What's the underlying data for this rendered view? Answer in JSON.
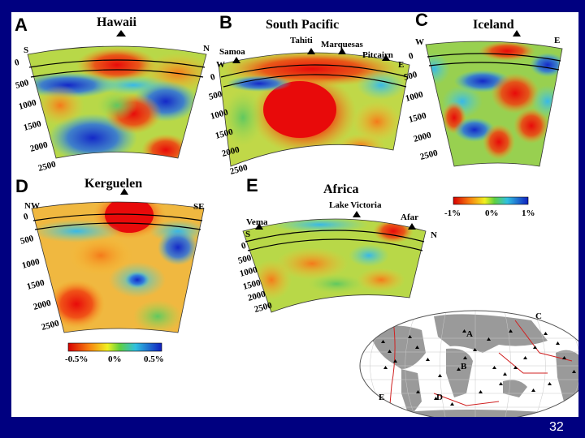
{
  "slide": {
    "page_number": "32"
  },
  "colors": {
    "background": "#000080",
    "hot": "#e01010",
    "neutral": "#e8e040",
    "cold": "#2040c8"
  },
  "panels": {
    "a": {
      "letter": "A",
      "title": "Hawaii",
      "left": "S",
      "right": "N",
      "depths": [
        "0",
        "500",
        "1000",
        "1500",
        "2000",
        "2500"
      ]
    },
    "b": {
      "letter": "B",
      "title": "South Pacific",
      "left": "W",
      "right": "E",
      "sites": [
        "Samoa",
        "Tahiti",
        "Marquesas",
        "Pitcairn"
      ],
      "depths": [
        "0",
        "500",
        "1000",
        "1500",
        "2000",
        "2500"
      ]
    },
    "c": {
      "letter": "C",
      "title": "Iceland",
      "left": "W",
      "right": "E",
      "depths": [
        "0",
        "500",
        "1000",
        "1500",
        "2000",
        "2500"
      ]
    },
    "d": {
      "letter": "D",
      "title": "Kerguelen",
      "left": "NW",
      "right": "SE",
      "depths": [
        "0",
        "500",
        "1000",
        "1500",
        "2000",
        "2500"
      ]
    },
    "e": {
      "letter": "E",
      "title": "Africa",
      "left": "S",
      "right": "N",
      "sites": [
        "Vema",
        "Lake Victoria",
        "Afar"
      ],
      "depths": [
        "0",
        "500",
        "1000",
        "1500",
        "2000",
        "2500"
      ]
    }
  },
  "colorbar_top": {
    "labels": [
      "-1%",
      "0%",
      "1%"
    ]
  },
  "colorbar_bottom": {
    "labels": [
      "-0.5%",
      "0%",
      "0.5%"
    ]
  },
  "world_map": {
    "labels": [
      "A",
      "B",
      "C",
      "D",
      "E"
    ]
  }
}
